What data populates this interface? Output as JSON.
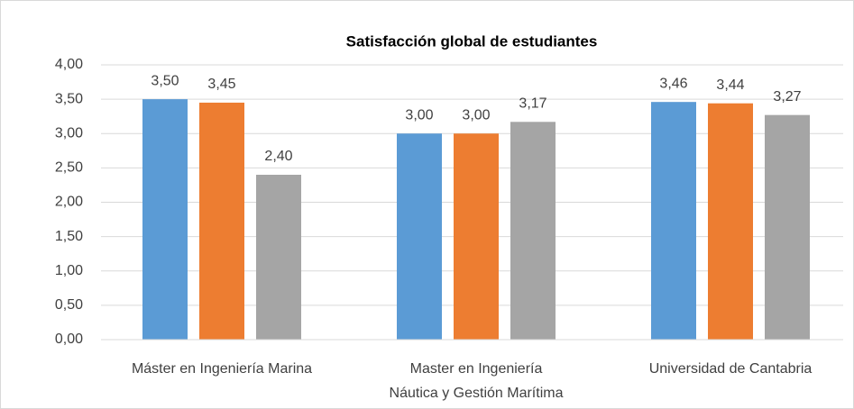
{
  "chart_data": {
    "type": "bar",
    "title": "Satisfacción global de estudiantes",
    "categories": [
      "Máster en Ingeniería Marina",
      "Master en Ingeniería\nNáutica y Gestión Marítima",
      "Universidad de Cantabria"
    ],
    "series": [
      {
        "color": "#5b9bd5",
        "values": [
          3.5,
          3.0,
          3.46
        ],
        "value_labels": [
          "3,50",
          "3,00",
          "3,46"
        ]
      },
      {
        "color": "#ed7d31",
        "values": [
          3.45,
          3.0,
          3.44
        ],
        "value_labels": [
          "3,45",
          "3,00",
          "3,44"
        ]
      },
      {
        "color": "#a5a5a5",
        "values": [
          2.4,
          3.17,
          3.27
        ],
        "value_labels": [
          "2,40",
          "3,17",
          "3,27"
        ]
      }
    ],
    "ylim": [
      0,
      4
    ],
    "yticks": [
      {
        "value": 0,
        "label": "0,00"
      },
      {
        "value": 0.5,
        "label": "0,50"
      },
      {
        "value": 1,
        "label": "1,00"
      },
      {
        "value": 1.5,
        "label": "1,50"
      },
      {
        "value": 2,
        "label": "2,00"
      },
      {
        "value": 2.5,
        "label": "2,50"
      },
      {
        "value": 3,
        "label": "3,00"
      },
      {
        "value": 3.5,
        "label": "3,50"
      },
      {
        "value": 4,
        "label": "4,00"
      }
    ],
    "grid": true
  }
}
